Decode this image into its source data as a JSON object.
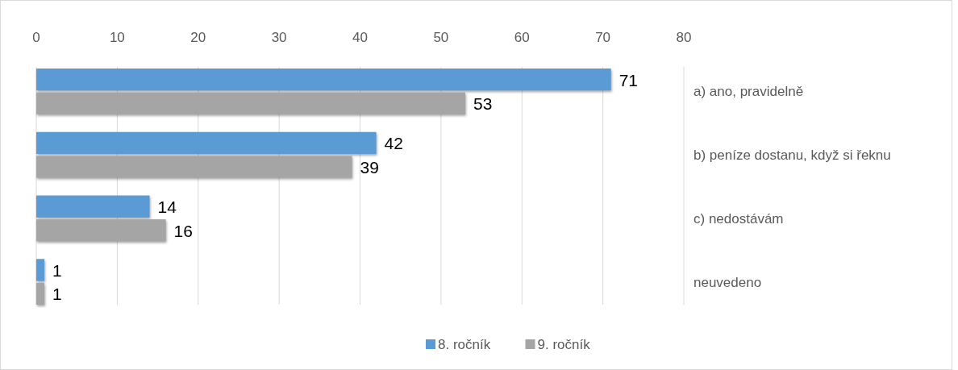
{
  "chart_data": {
    "type": "bar",
    "orientation": "horizontal",
    "categories": [
      "a) ano, pravidelně",
      "b) peníze dostanu, když si řeknu",
      "c) nedostávám",
      "neuvedeno"
    ],
    "series": [
      {
        "name": "8. ročník",
        "color": "#5b9bd5",
        "values": [
          71,
          42,
          14,
          1
        ]
      },
      {
        "name": "9. ročník",
        "color": "#a5a5a5",
        "values": [
          53,
          39,
          16,
          1
        ]
      }
    ],
    "xlim": [
      0,
      80
    ],
    "xticks": [
      0,
      10,
      20,
      30,
      40,
      50,
      60,
      70,
      80
    ],
    "grid": "x",
    "legend": "bottom",
    "data_labels": true
  }
}
